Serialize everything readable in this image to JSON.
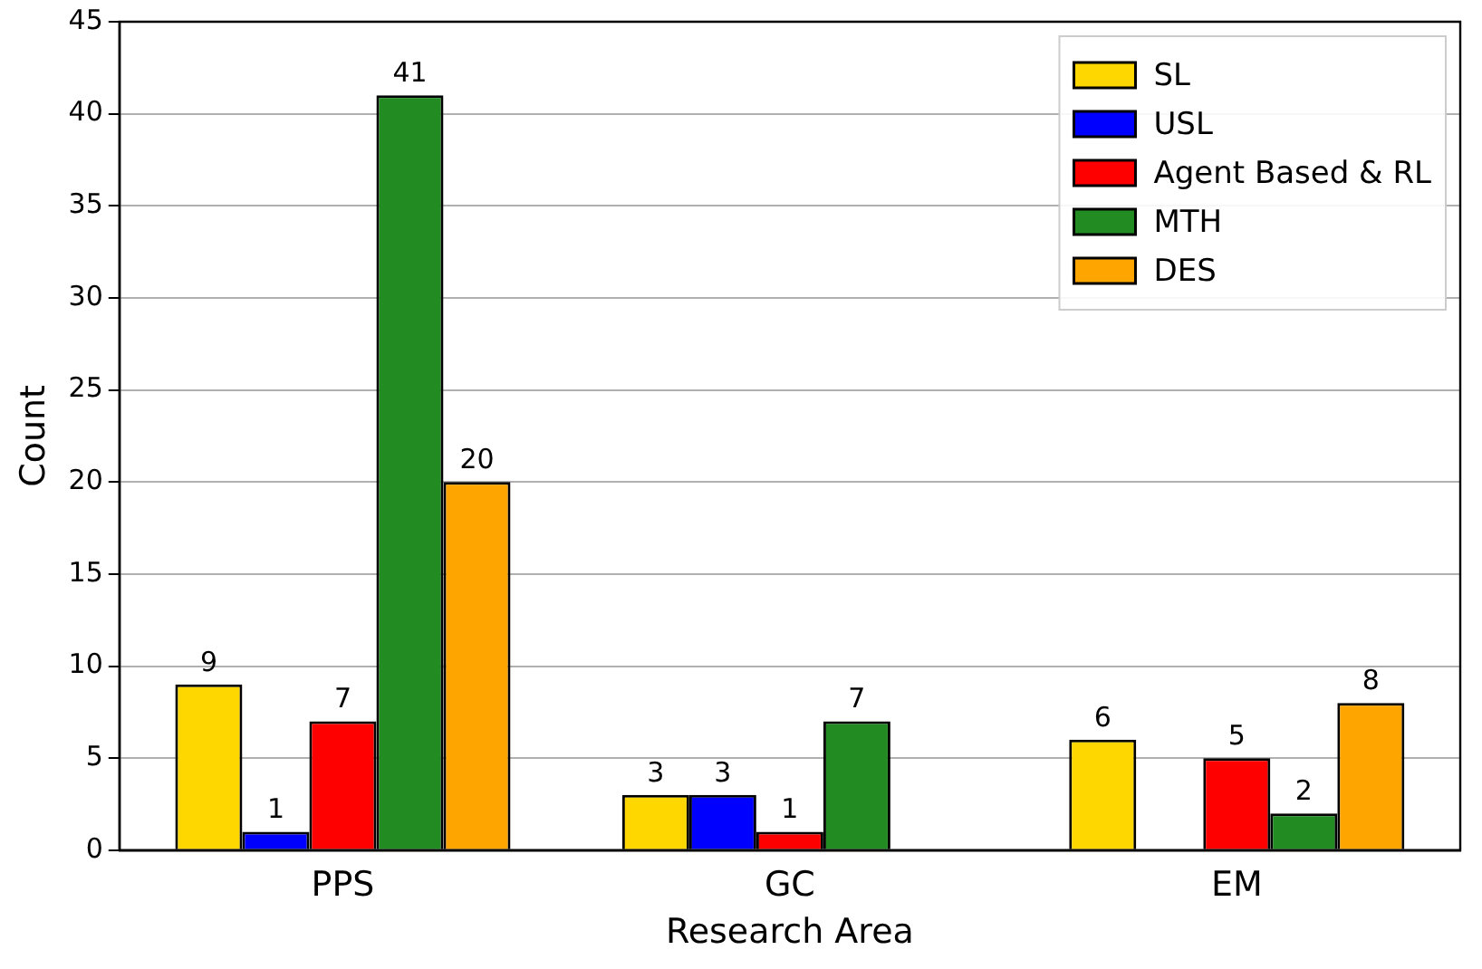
{
  "chart_data": {
    "type": "bar",
    "xlabel": "Research Area",
    "ylabel": "Count",
    "categories": [
      "PPS",
      "GC",
      "EM"
    ],
    "series": [
      {
        "name": "SL",
        "color": "#ffd700",
        "values": [
          9,
          3,
          6
        ]
      },
      {
        "name": "USL",
        "color": "#0000ff",
        "values": [
          1,
          3,
          null
        ]
      },
      {
        "name": "Agent Based & RL",
        "color": "#ff0000",
        "values": [
          7,
          1,
          5
        ]
      },
      {
        "name": "MTH",
        "color": "#228b22",
        "values": [
          41,
          7,
          2
        ]
      },
      {
        "name": "DES",
        "color": "#ffa500",
        "values": [
          20,
          null,
          8
        ]
      }
    ],
    "ylim": [
      0,
      45
    ],
    "yticks": [
      0,
      5,
      10,
      15,
      20,
      25,
      30,
      35,
      40,
      45
    ],
    "grid": "y",
    "legend": "top right",
    "data_labels": true
  }
}
